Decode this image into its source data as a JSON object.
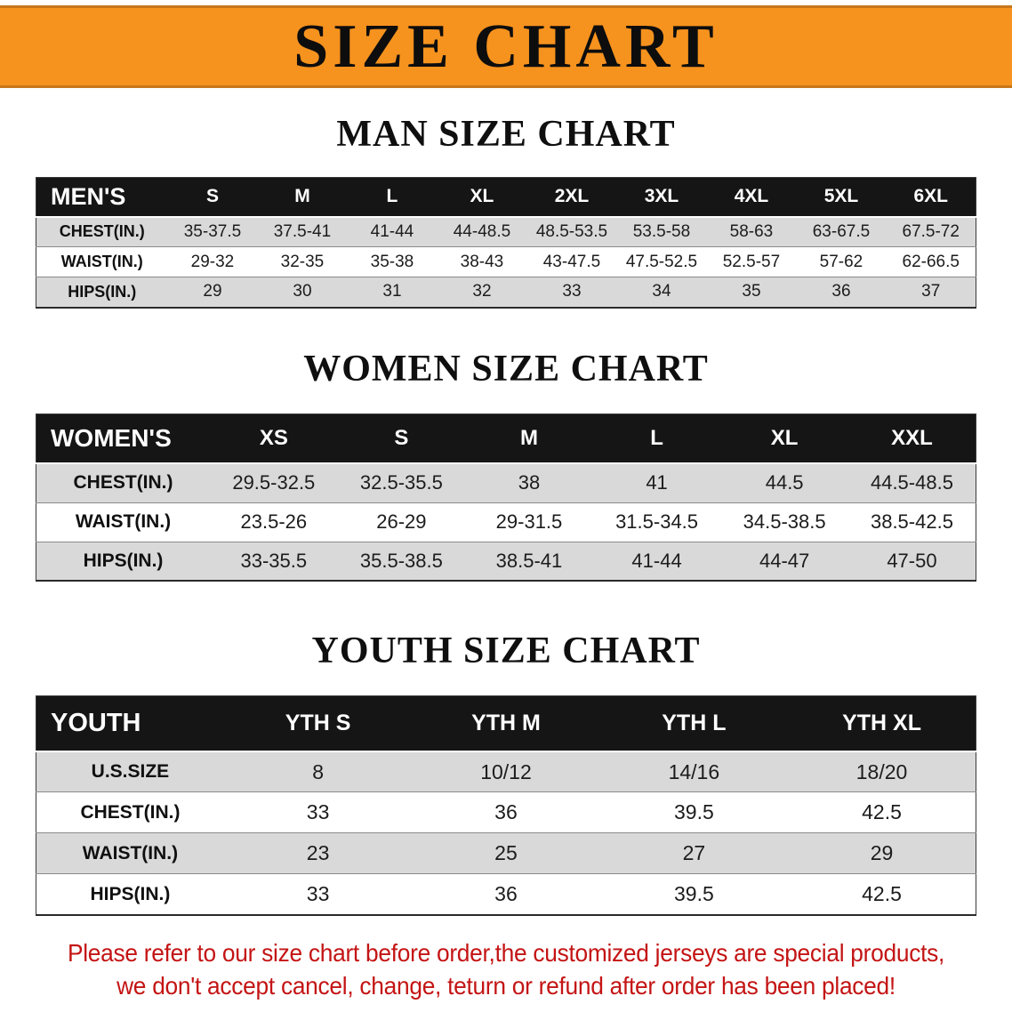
{
  "banner": {
    "title": "SIZE CHART"
  },
  "colors": {
    "banner_bg": "#F6921E",
    "header_bar": "#151515",
    "stripe_gray": "#d9d9d9",
    "notice_red": "#c41414"
  },
  "sections": [
    {
      "heading": "MAN SIZE CHART",
      "table": {
        "header": [
          "MEN'S",
          "S",
          "M",
          "L",
          "XL",
          "2XL",
          "3XL",
          "4XL",
          "5XL",
          "6XL"
        ],
        "rows": [
          {
            "label": "CHEST(IN.)",
            "values": [
              "35-37.5",
              "37.5-41",
              "41-44",
              "44-48.5",
              "48.5-53.5",
              "53.5-58",
              "58-63",
              "63-67.5",
              "67.5-72"
            ]
          },
          {
            "label": "WAIST(IN.)",
            "values": [
              "29-32",
              "32-35",
              "35-38",
              "38-43",
              "43-47.5",
              "47.5-52.5",
              "52.5-57",
              "57-62",
              "62-66.5"
            ]
          },
          {
            "label": "HIPS(IN.)",
            "values": [
              "29",
              "30",
              "31",
              "32",
              "33",
              "34",
              "35",
              "36",
              "37"
            ]
          }
        ]
      }
    },
    {
      "heading": "WOMEN SIZE CHART",
      "table": {
        "header": [
          "WOMEN'S",
          "XS",
          "S",
          "M",
          "L",
          "XL",
          "XXL"
        ],
        "rows": [
          {
            "label": "CHEST(IN.)",
            "values": [
              "29.5-32.5",
              "32.5-35.5",
              "38",
              "41",
              "44.5",
              "44.5-48.5"
            ]
          },
          {
            "label": "WAIST(IN.)",
            "values": [
              "23.5-26",
              "26-29",
              "29-31.5",
              "31.5-34.5",
              "34.5-38.5",
              "38.5-42.5"
            ]
          },
          {
            "label": "HIPS(IN.)",
            "values": [
              "33-35.5",
              "35.5-38.5",
              "38.5-41",
              "41-44",
              "44-47",
              "47-50"
            ]
          }
        ]
      }
    },
    {
      "heading": "YOUTH SIZE CHART",
      "table": {
        "header": [
          "YOUTH",
          "YTH S",
          "YTH M",
          "YTH L",
          "YTH XL"
        ],
        "rows": [
          {
            "label": "U.S.SIZE",
            "values": [
              "8",
              "10/12",
              "14/16",
              "18/20"
            ]
          },
          {
            "label": "CHEST(IN.)",
            "values": [
              "33",
              "36",
              "39.5",
              "42.5"
            ]
          },
          {
            "label": "WAIST(IN.)",
            "values": [
              "23",
              "25",
              "27",
              "29"
            ]
          },
          {
            "label": "HIPS(IN.)",
            "values": [
              "33",
              "36",
              "39.5",
              "42.5"
            ]
          }
        ]
      }
    }
  ],
  "notice": {
    "lines": [
      "Please refer to our size chart before order,the customized jerseys are special products,",
      "we don't accept cancel, change, teturn or refund after order has been placed!"
    ]
  }
}
